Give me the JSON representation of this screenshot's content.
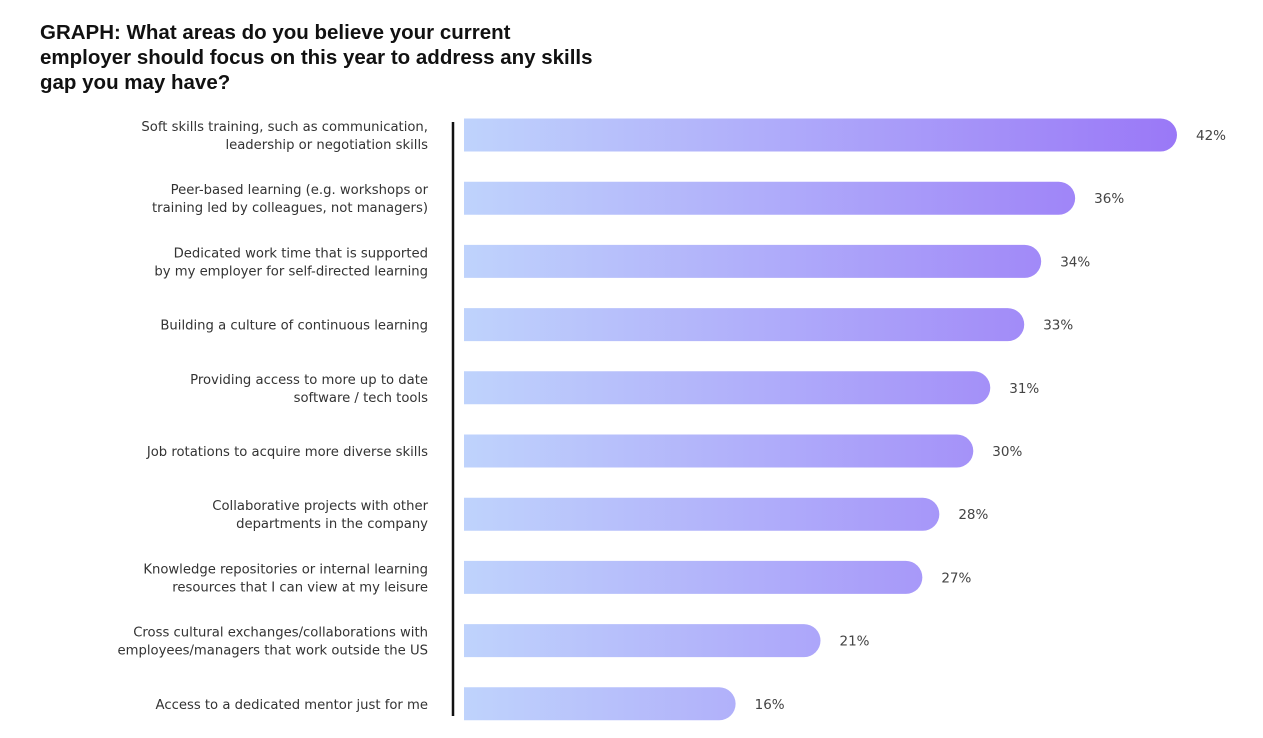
{
  "chart_data": {
    "type": "bar",
    "orientation": "horizontal",
    "title": "GRAPH: What areas do you believe your current employer should focus on this year to address any skills gap you may have?",
    "xlabel": "",
    "ylabel": "",
    "xlim": [
      0,
      42
    ],
    "grid": false,
    "value_suffix": "%",
    "categories": [
      [
        "Soft skills training, such as communication,",
        "leadership or negotiation skills"
      ],
      [
        "Peer-based learning (e.g. workshops or",
        "training led by colleagues, not managers)"
      ],
      [
        "Dedicated work time that is supported",
        "by my employer for self-directed learning"
      ],
      [
        "Building a culture of continuous learning"
      ],
      [
        "Providing access to more up to date",
        "software / tech tools"
      ],
      [
        "Job rotations to acquire more diverse skills"
      ],
      [
        "Collaborative projects with other",
        "departments in the company"
      ],
      [
        "Knowledge repositories or internal learning",
        "resources that I can view at my leisure"
      ],
      [
        "Cross cultural exchanges/collaborations with",
        "employees/managers that work outside the US"
      ],
      [
        "Access to a dedicated mentor just for me"
      ]
    ],
    "values": [
      42,
      36,
      34,
      33,
      31,
      30,
      28,
      27,
      21,
      16
    ],
    "labels": [
      "42%",
      "36%",
      "34%",
      "33%",
      "31%",
      "30%",
      "28%",
      "27%",
      "21%",
      "16%"
    ],
    "colors": {
      "gradient_start": "#bfd3fc",
      "gradient_end": "#9a78f7",
      "axis": "#111111"
    }
  }
}
